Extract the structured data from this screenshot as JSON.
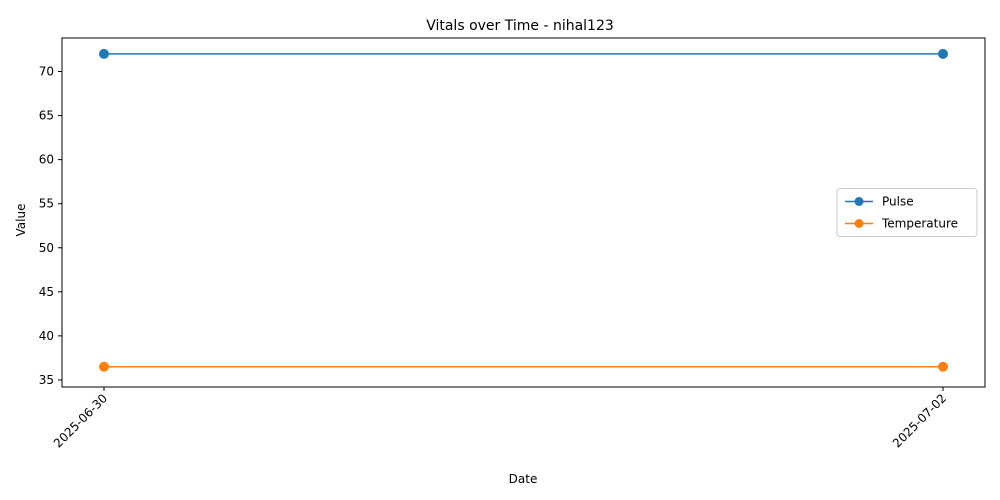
{
  "chart_data": {
    "type": "line",
    "title": "Vitals over Time - nihal123",
    "xlabel": "Date",
    "ylabel": "Value",
    "categories": [
      "2025-06-30",
      "2025-07-02"
    ],
    "series": [
      {
        "name": "Pulse",
        "values": [
          72,
          72
        ],
        "color": "#1f77b4",
        "marker": "circle"
      },
      {
        "name": "Temperature",
        "values": [
          36.5,
          36.5
        ],
        "color": "#ff7f0e",
        "marker": "circle"
      }
    ],
    "ylim": [
      34.2,
      73.8
    ],
    "yticks": [
      35,
      40,
      45,
      50,
      55,
      60,
      65,
      70
    ],
    "grid": false,
    "legend_position": "center-right",
    "x_tick_rotation": 45
  }
}
